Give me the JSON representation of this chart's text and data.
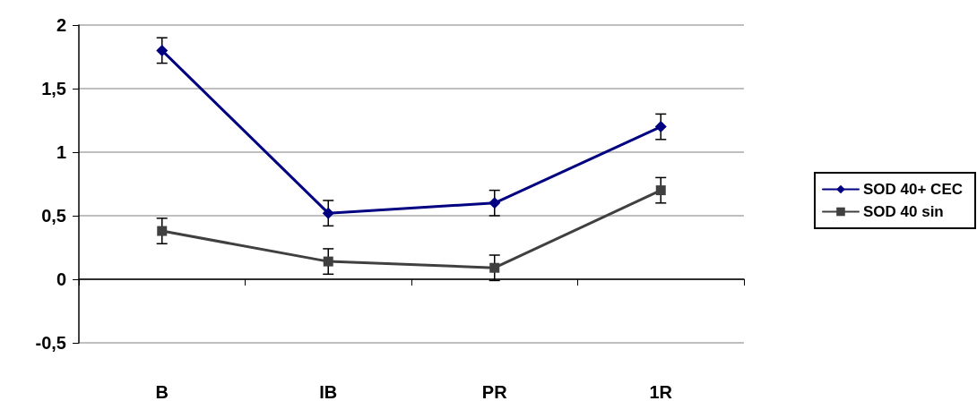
{
  "chart_data": {
    "type": "line",
    "categories": [
      "B",
      "IB",
      "PR",
      "1R"
    ],
    "series": [
      {
        "name": "SOD 40+ CEC",
        "color": "#000080",
        "marker": "diamond",
        "values": [
          1.8,
          0.52,
          0.6,
          1.2
        ],
        "errors": [
          0.1,
          0.1,
          0.1,
          0.1
        ]
      },
      {
        "name": "SOD 40 sin",
        "color": "#404040",
        "marker": "square",
        "values": [
          0.38,
          0.14,
          0.09,
          0.7
        ],
        "errors": [
          0.1,
          0.1,
          0.1,
          0.1
        ]
      }
    ],
    "ylim": [
      -0.5,
      2
    ],
    "yticks": [
      {
        "value": -0.5,
        "label": "-0,5"
      },
      0,
      {
        "value": 0.5,
        "label": "0,5"
      },
      1,
      {
        "value": 1.5,
        "label": "1,5"
      },
      2
    ],
    "grid": "y",
    "legend": "right",
    "line_style": "solid"
  }
}
